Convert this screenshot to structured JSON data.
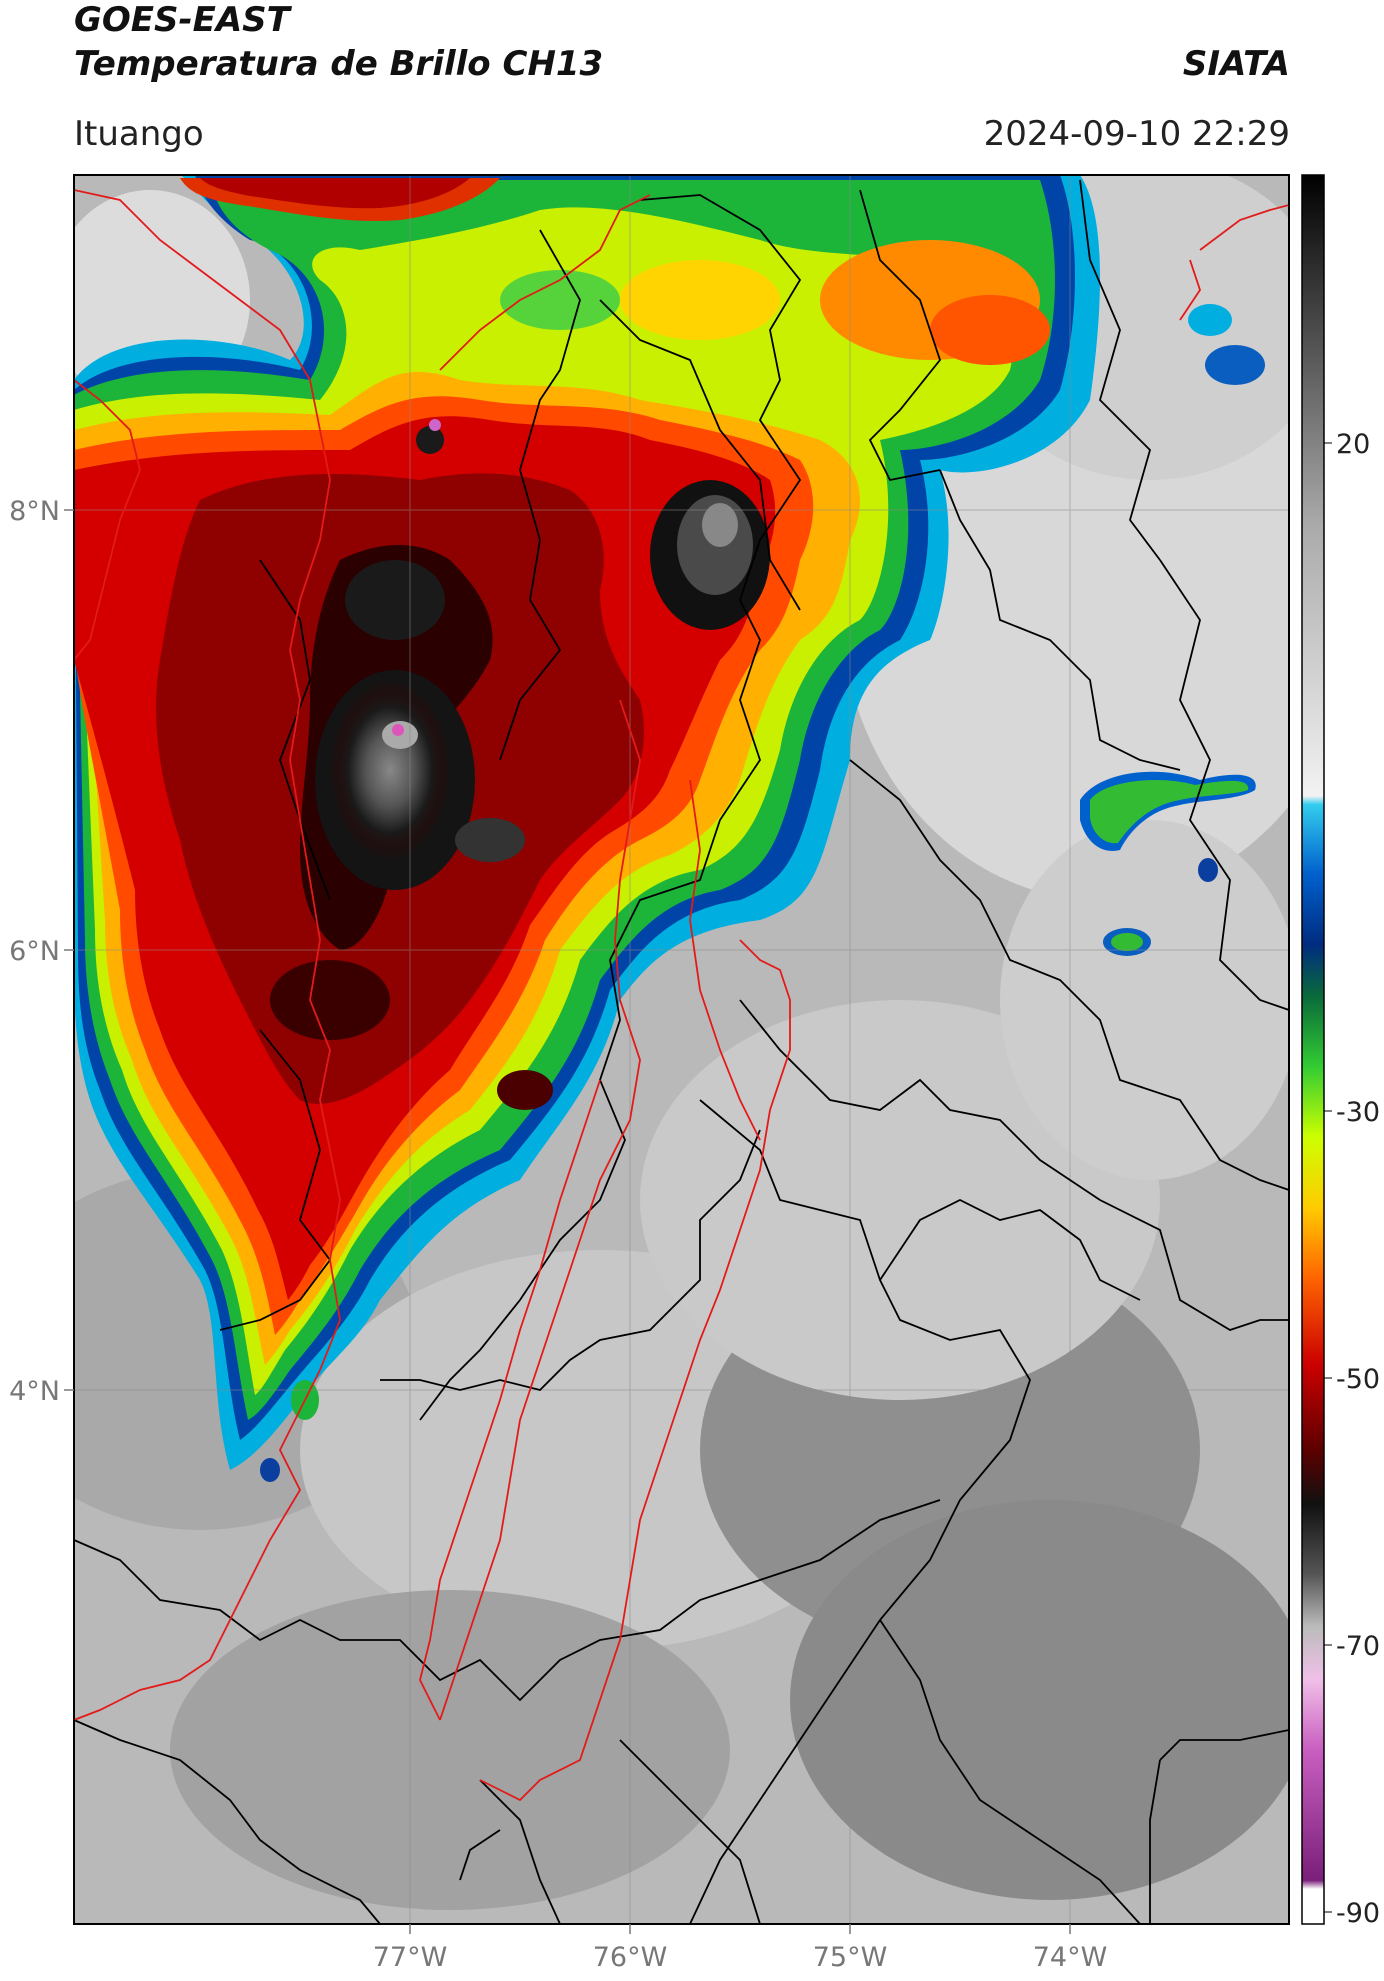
{
  "header": {
    "satellite": "GOES-EAST",
    "product": "Temperatura de Brillo CH13",
    "brand": "SIATA",
    "location": "Ituango",
    "datetime": "2024-09-10 22:29"
  },
  "map": {
    "lat_labels": [
      "8°N",
      "6°N",
      "4°N"
    ],
    "lon_labels": [
      "77°W",
      "76°W",
      "75°W",
      "74°W"
    ],
    "colorbar_labels": [
      "20",
      "-30",
      "-50",
      "-70",
      "-90"
    ]
  }
}
